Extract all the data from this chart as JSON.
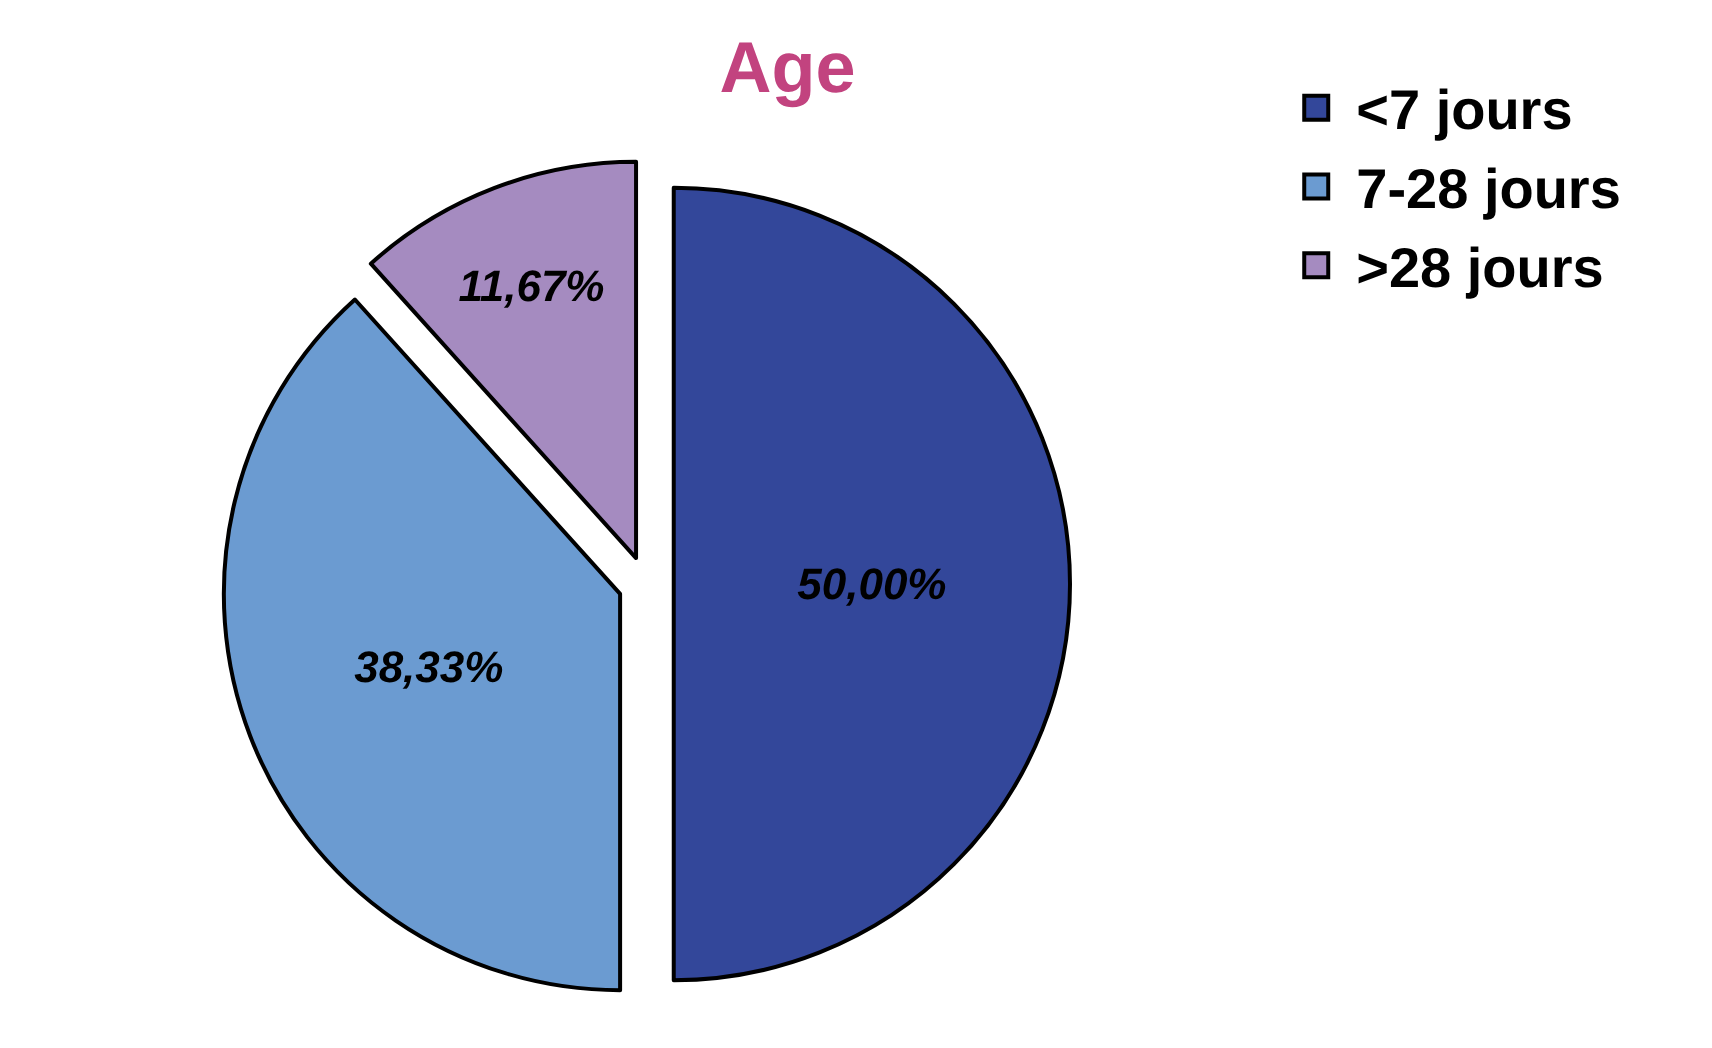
{
  "chart_data": {
    "type": "pie",
    "title": "Age",
    "categories": [
      "<7 jours",
      "7-28 jours",
      ">28 jours"
    ],
    "values": [
      50,
      38.33,
      11.67
    ],
    "colors": [
      "#33479a",
      "#6b9bd1",
      "#a58bc0"
    ],
    "value_labels": [
      "50,00%",
      "38,33%",
      "11,67%"
    ],
    "legend": "top right"
  }
}
